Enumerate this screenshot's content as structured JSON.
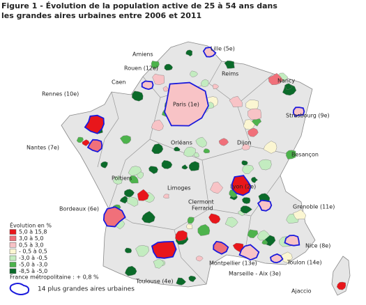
{
  "header": {
    "title": [
      "Figure 1 - Évolution de la population active de 25 à 54 ans dans",
      "les grandes aires urbaines entre 2006 et 2011"
    ]
  },
  "cities": [
    "Amiens",
    "Lille (5e)",
    "Rouen (12e)",
    "Reims",
    "Caen",
    "Nancy",
    "Rennes (10e)",
    "Paris (1e)",
    "Strasbourg (9e)",
    "Nantes (7e)",
    "Orléans",
    "Dijon",
    "Besançon",
    "Poitiers",
    "Limoges",
    "Lyon (2e)",
    "Clermont",
    "Ferrand",
    "Grenoble (11e)",
    "Bordeaux (6e)",
    "Nice (8e)",
    "Montpellier (13e)",
    "Toulon (14e)",
    "Marseille - Aix (3e)",
    "Toulouse (4e)",
    "Ajaccio"
  ],
  "legend": {
    "title": "Évolution en %",
    "classes": [
      {
        "label": "5,0 à 15,8",
        "color": "#e8161b"
      },
      {
        "label": "3,0 à 5,0",
        "color": "#f0707a"
      },
      {
        "label": "0,5 à 3,0",
        "color": "#f8c3c6"
      },
      {
        "label": "- 0,5 à 0,5",
        "color": "#fbf6d2"
      },
      {
        "label": "-3,0 à -0,5",
        "color": "#c3ecc0"
      },
      {
        "label": "-5,0 à -3,0",
        "color": "#4db34c"
      },
      {
        "label": "-8,5 à -5,0",
        "color": "#0b6b2a"
      }
    ],
    "note": "France métropolitaine : + 0,8 %",
    "outline_label": "14 plus grandes aires urbaines"
  }
}
